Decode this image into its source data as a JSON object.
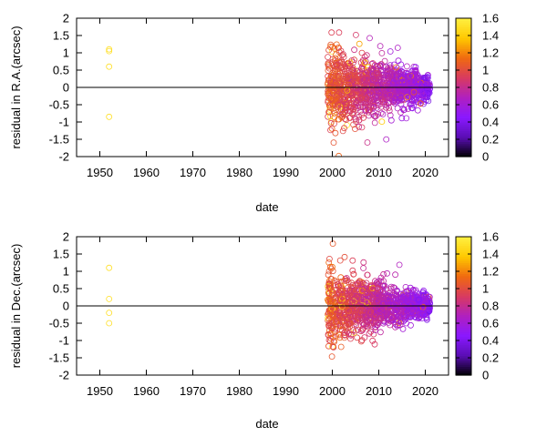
{
  "chart_data": [
    {
      "type": "scatter",
      "ylabel": "residual in R.A.(arcsec)",
      "xlabel": "date",
      "xlim": [
        1945,
        2025
      ],
      "ylim": [
        -2,
        2
      ],
      "x_ticks": [
        1950,
        1960,
        1970,
        1980,
        1990,
        2000,
        2010,
        2020
      ],
      "y_ticks": [
        -2,
        -1.5,
        -1,
        -0.5,
        0,
        0.5,
        1,
        1.5,
        2
      ],
      "zero_line": true,
      "grid": false,
      "marker": "open-circle",
      "early_points": [
        {
          "date": 1952,
          "residual": 1.1
        },
        {
          "date": 1952,
          "residual": 1.05
        },
        {
          "date": 1952,
          "residual": 0.6
        },
        {
          "date": 1952,
          "residual": -0.85
        }
      ],
      "dense_cluster": {
        "date_range": [
          1999,
          2021
        ],
        "residual_range": [
          -2,
          2
        ],
        "typical_spread": 0.8
      },
      "colorbar": {
        "range": [
          0,
          1.6
        ],
        "ticks": [
          0,
          0.2,
          0.4,
          0.6,
          0.8,
          1,
          1.2,
          1.4,
          1.6
        ],
        "palette": [
          "#000000",
          "#5a0eb4",
          "#8a18ff",
          "#b020c0",
          "#d83a60",
          "#f06a10",
          "#ffc800",
          "#fff040"
        ]
      }
    },
    {
      "type": "scatter",
      "ylabel": "residual in Dec.(arcsec)",
      "xlabel": "date",
      "xlim": [
        1945,
        2025
      ],
      "ylim": [
        -2,
        2
      ],
      "x_ticks": [
        1950,
        1960,
        1970,
        1980,
        1990,
        2000,
        2010,
        2020
      ],
      "y_ticks": [
        -2,
        -1.5,
        -1,
        -0.5,
        0,
        0.5,
        1,
        1.5,
        2
      ],
      "zero_line": true,
      "grid": false,
      "marker": "open-circle",
      "early_points": [
        {
          "date": 1952,
          "residual": 1.1
        },
        {
          "date": 1952,
          "residual": 0.2
        },
        {
          "date": 1952,
          "residual": -0.2
        },
        {
          "date": 1952,
          "residual": -0.5
        }
      ],
      "dense_cluster": {
        "date_range": [
          1999,
          2021
        ],
        "residual_range": [
          -2,
          1.8
        ],
        "typical_spread": 0.7
      },
      "colorbar": {
        "range": [
          0,
          1.6
        ],
        "ticks": [
          0,
          0.2,
          0.4,
          0.6,
          0.8,
          1,
          1.2,
          1.4,
          1.6
        ],
        "palette": [
          "#000000",
          "#5a0eb4",
          "#8a18ff",
          "#b020c0",
          "#d83a60",
          "#f06a10",
          "#ffc800",
          "#fff040"
        ]
      }
    }
  ]
}
